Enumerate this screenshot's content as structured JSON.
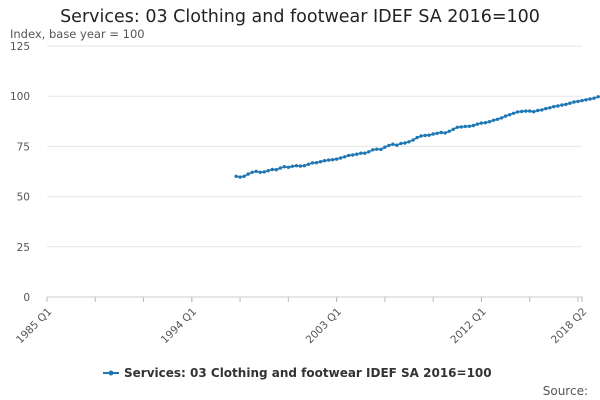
{
  "chart_data": {
    "type": "line",
    "title": "Services: 03 Clothing and footwear IDEF SA 2016=100",
    "ylabel": "Index, base year = 100",
    "xlabel": "",
    "ylim": [
      0,
      125
    ],
    "y_ticks": [
      0,
      25,
      50,
      75,
      100,
      125
    ],
    "x_tick_labels": [
      "1985 Q1",
      "1994 Q1",
      "2003 Q1",
      "2012 Q1",
      "2018 Q2"
    ],
    "x_domain": [
      "1985 Q1",
      "2018 Q2"
    ],
    "grid": true,
    "legend_position": "bottom",
    "source_label": "Source:",
    "color": "#1f77b4",
    "series": [
      {
        "name": "Services: 03 Clothing and footwear IDEF SA 2016=100",
        "start": "1996 Q4",
        "end": "2018 Q2",
        "values": [
          60.1,
          59.7,
          60.1,
          61.2,
          62.1,
          62.6,
          62.1,
          62.3,
          62.9,
          63.5,
          63.4,
          64.2,
          64.9,
          64.6,
          65.1,
          65.4,
          65.2,
          65.4,
          66.1,
          66.8,
          66.9,
          67.4,
          67.9,
          68.2,
          68.4,
          68.7,
          69.2,
          69.8,
          70.5,
          70.7,
          71.1,
          71.6,
          71.6,
          72.3,
          73.3,
          73.6,
          73.5,
          74.6,
          75.5,
          76.1,
          75.6,
          76.5,
          76.7,
          77.3,
          78.2,
          79.4,
          80.2,
          80.5,
          80.6,
          81.2,
          81.5,
          81.9,
          81.7,
          82.5,
          83.5,
          84.5,
          84.7,
          84.9,
          85.0,
          85.4,
          86.1,
          86.6,
          86.8,
          87.3,
          88.0,
          88.5,
          89.2,
          90.1,
          90.8,
          91.5,
          92.2,
          92.4,
          92.6,
          92.6,
          92.3,
          92.9,
          93.2,
          93.8,
          94.2,
          94.8,
          95.1,
          95.6,
          95.9,
          96.5,
          97.1,
          97.4,
          97.8,
          98.2,
          98.6,
          99.0,
          99.7,
          100.0,
          100.2,
          100.1,
          100.5,
          101.1,
          101.9,
          102.6,
          103.1,
          103.3,
          104.2,
          104.4,
          104.5,
          104.8
        ]
      }
    ]
  }
}
